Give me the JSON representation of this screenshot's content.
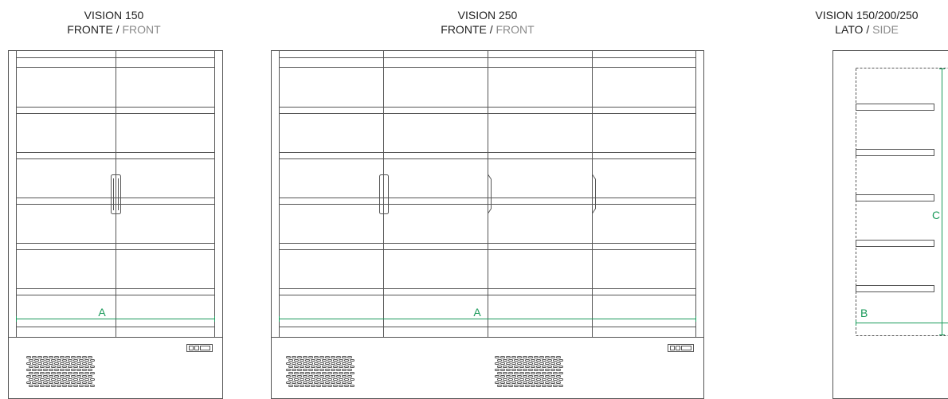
{
  "colors": {
    "line": "#555555",
    "dimension": "#1a9a5a",
    "title": "#222222",
    "title_secondary": "#8a8a8a"
  },
  "views": {
    "vision150_front": {
      "title_line1": "VISION 150",
      "primary_label": "FRONTE",
      "separator": " / ",
      "secondary_label": "FRONT",
      "dimension_label": "A"
    },
    "vision250_front": {
      "title_line1": "VISION 250",
      "primary_label": "FRONTE",
      "separator": " / ",
      "secondary_label": "FRONT",
      "dimension_label": "A"
    },
    "side_view": {
      "title_line1": "VISION 150/200/250",
      "primary_label": "LATO",
      "separator": " / ",
      "secondary_label": "SIDE",
      "dimension_label_depth": "B",
      "dimension_label_height": "C"
    }
  }
}
